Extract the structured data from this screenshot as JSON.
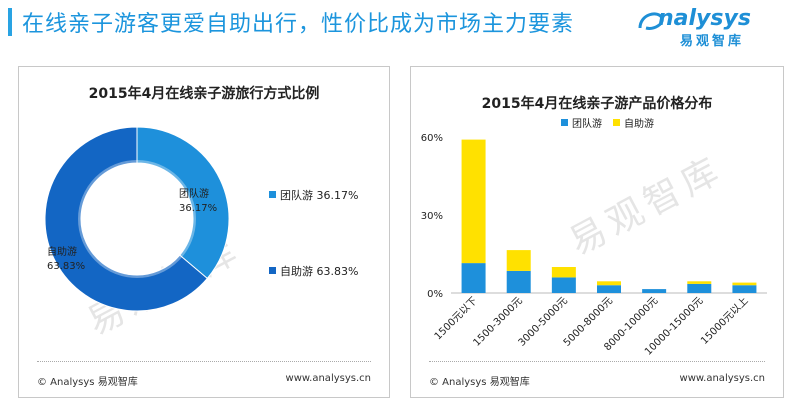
{
  "page": {
    "title": "在线亲子游客更爱自助出行，性价比成为市场主力要素",
    "logo_word": "nalysys",
    "logo_cn": "易观智库"
  },
  "colors": {
    "accent": "#1c95dd",
    "team": "#1e90db",
    "self": "#ffe100"
  },
  "left_panel": {
    "footer_left": "© Analysys 易观智库",
    "footer_right": "www.analysys.cn",
    "watermark": "易观智库"
  },
  "right_panel": {
    "footer_left": "© Analysys 易观智库",
    "footer_right": "www.analysys.cn",
    "watermark": "易观智库"
  },
  "chart_data": [
    {
      "type": "pie",
      "variant": "donut",
      "title": "2015年4月在线亲子游旅行方式比例",
      "slices": [
        {
          "label": "团队游",
          "value": 36.17,
          "value_text": "36.17%",
          "color": "#1e90db"
        },
        {
          "label": "自助游",
          "value": 63.83,
          "value_text": "63.83%",
          "color": "#1366c4"
        }
      ],
      "legend": [
        {
          "label": "团队游  36.17%",
          "color": "#1e90db"
        },
        {
          "label": "自助游  63.83%",
          "color": "#1366c4"
        }
      ],
      "legend_position": "right"
    },
    {
      "type": "bar",
      "stacked": true,
      "title": "2015年4月在线亲子游产品价格分布",
      "categories": [
        "1500元以下",
        "1500-3000元",
        "3000-5000元",
        "5000-8000元",
        "8000-10000元",
        "10000-15000元",
        "15000元以上"
      ],
      "series": [
        {
          "name": "团队游",
          "color": "#1e90db",
          "values": [
            11.5,
            8.5,
            6.0,
            3.0,
            1.5,
            3.5,
            3.0
          ]
        },
        {
          "name": "自助游",
          "color": "#ffe100",
          "values": [
            47.5,
            8.0,
            4.0,
            1.5,
            0.0,
            1.0,
            1.0
          ]
        }
      ],
      "ylim": [
        0,
        60
      ],
      "yticks": [
        "0%",
        "30%",
        "60%"
      ],
      "ytick_values": [
        0,
        30,
        60
      ],
      "legend_position": "top",
      "grid": false
    }
  ]
}
